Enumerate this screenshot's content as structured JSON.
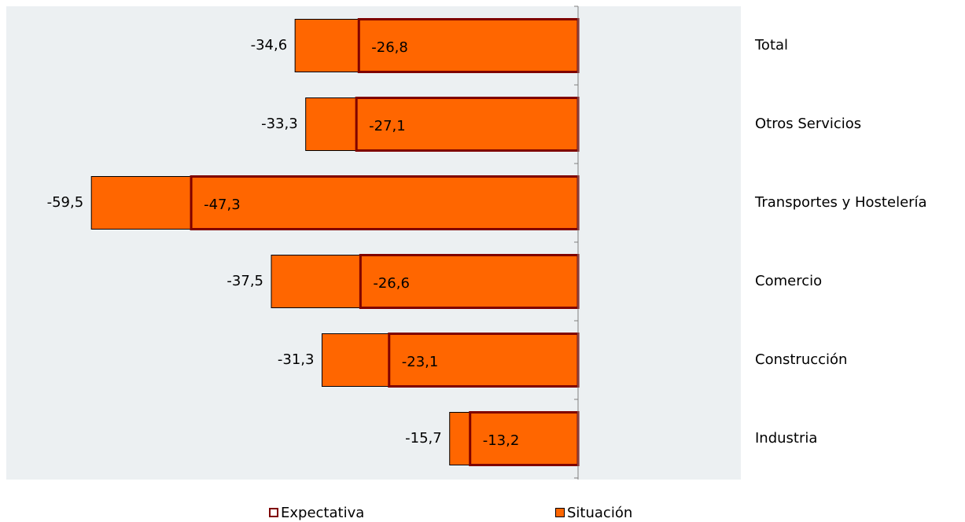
{
  "chart_data": {
    "type": "bar",
    "orientation": "horizontal",
    "categories": [
      "Total",
      "Otros Servicios",
      "Transportes y Hostelería",
      "Comercio",
      "Construcción",
      "Industria"
    ],
    "series": [
      {
        "name": "Expectativa",
        "values": [
          -34.6,
          -33.3,
          -59.5,
          -37.5,
          -31.3,
          -15.7
        ],
        "labels": [
          "-34,6",
          "-33,3",
          "-59,5",
          "-37,5",
          "-31,3",
          "-15,7"
        ]
      },
      {
        "name": "Situación",
        "values": [
          -26.8,
          -27.1,
          -47.3,
          -26.6,
          -23.1,
          -13.2
        ],
        "labels": [
          "-26,8",
          "-27,1",
          "-47,3",
          "-26,6",
          "-23,1",
          "-13,2"
        ]
      }
    ],
    "xlim": [
      -60,
      0
    ],
    "category_axis_side": "right",
    "legend_position": "bottom",
    "grid": false
  },
  "colors": {
    "plot_background": "#ecf0f2",
    "situacion_fill": "#ff6600",
    "expectativa_fill": "#ff6600",
    "situacion_border": "#7f0000",
    "expectativa_border": "#000000",
    "legend_expectativa_swatch": "#ffffff",
    "legend_expectativa_border": "#7f0000"
  }
}
